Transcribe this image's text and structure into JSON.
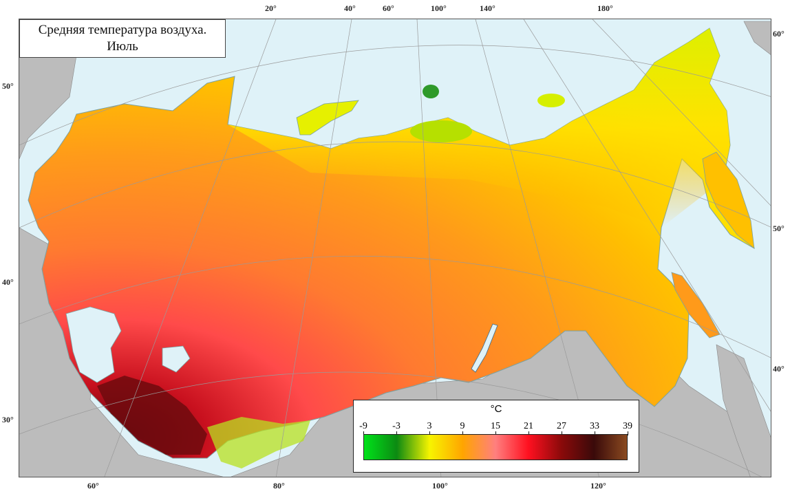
{
  "title": {
    "line1": "Средняя температура воздуха.",
    "line2": "Июль"
  },
  "longitude_labels_top": [
    "20°",
    "40°",
    "60°",
    "100°",
    "140°",
    "180°"
  ],
  "longitude_labels_bottom": [
    "60°",
    "80°",
    "100°",
    "120°"
  ],
  "latitude_labels_left": [
    "50°",
    "40°",
    "30°"
  ],
  "latitude_labels_right": [
    "60°",
    "50°",
    "40°"
  ],
  "legend": {
    "unit": "°C",
    "ticks": [
      "-9",
      "-3",
      "3",
      "9",
      "15",
      "21",
      "27",
      "33",
      "39"
    ],
    "colors": [
      "#00e31a",
      "#0c8a12",
      "#f7f400",
      "#ffa500",
      "#ff7f7f",
      "#ff1020",
      "#8b0a0a",
      "#3a0a0a",
      "#8a4a20"
    ]
  },
  "map_colors": {
    "sea": "#dff2f8",
    "foreign_land": "#bcbcbc",
    "arctic_cool": "#c8f000",
    "north": "#fff000",
    "central": "#ff9a1a",
    "south": "#ff4a4a",
    "hot": "#7a0a10"
  }
}
